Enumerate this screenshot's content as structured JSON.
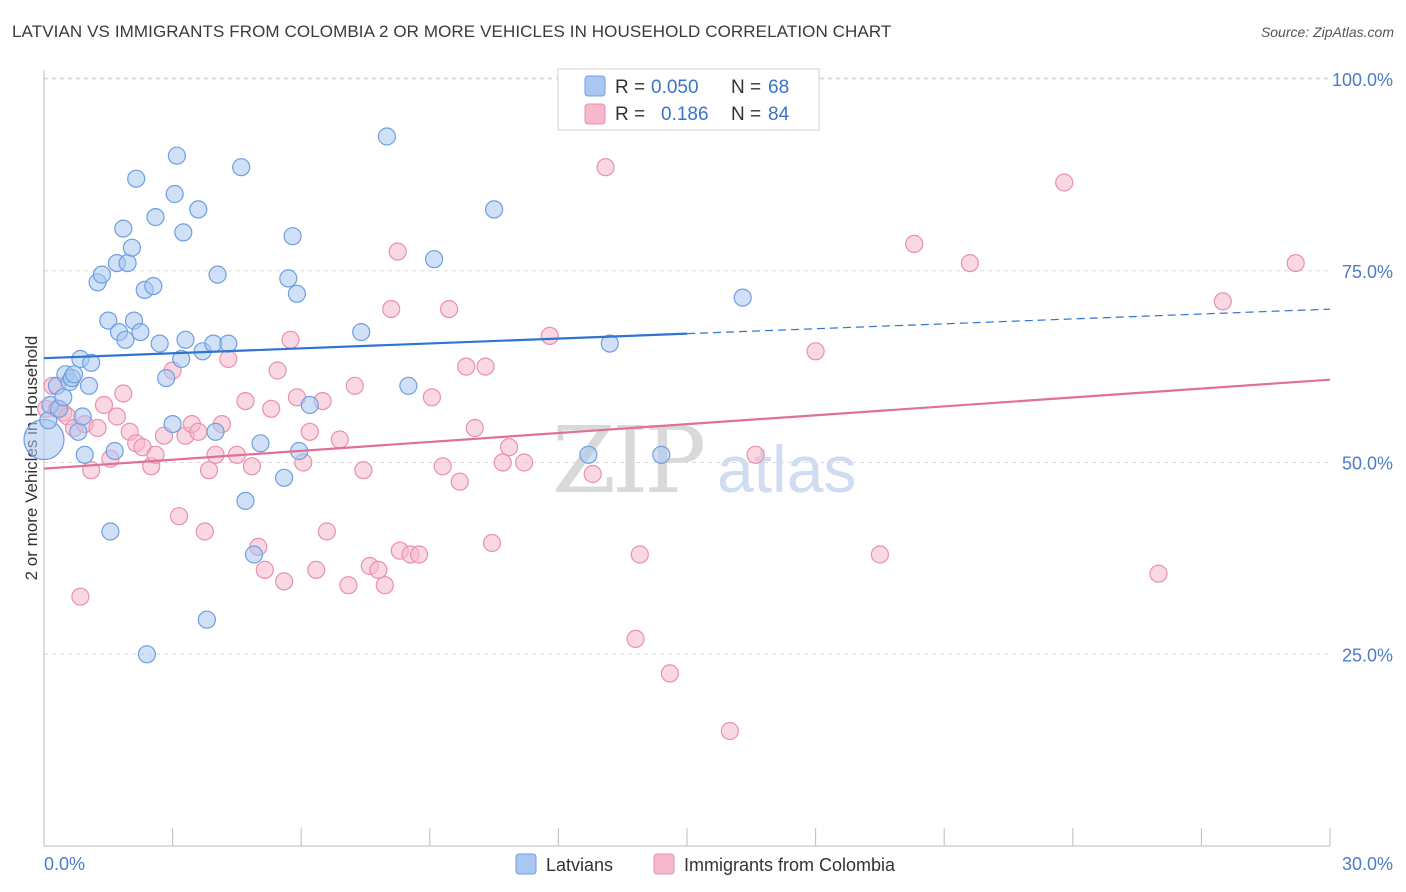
{
  "title": "LATVIAN VS IMMIGRANTS FROM COLOMBIA 2 OR MORE VEHICLES IN HOUSEHOLD CORRELATION CHART",
  "source": "Source: ZipAtlas.com",
  "watermark": {
    "zip": "ZIP",
    "atlas": "atlas"
  },
  "legend": {
    "rows": [
      {
        "r_label": "R =",
        "r_value": "0.050",
        "n_label": "N =",
        "n_value": "68"
      },
      {
        "r_label": "R =",
        "r_value": "0.186",
        "n_label": "N =",
        "n_value": "84"
      }
    ]
  },
  "colors": {
    "latvians_fill": "#a9c7f0",
    "latvians_stroke": "#6e9fe0",
    "latvians_line": "#2f74cf",
    "colombia_fill": "#f6b8cc",
    "colombia_stroke": "#ea8fae",
    "colombia_line": "#e0709a"
  },
  "chart_data": {
    "type": "scatter",
    "xlabel": "",
    "ylabel": "2 or more Vehicles in Household",
    "xlim": [
      0,
      30
    ],
    "ylim": [
      0,
      105
    ],
    "x_tick_labels": [
      {
        "value": 0,
        "label": "0.0%"
      },
      {
        "value": 30,
        "label": "30.0%"
      }
    ],
    "y_tick_labels": [
      {
        "value": 25,
        "label": "25.0%"
      },
      {
        "value": 50,
        "label": "50.0%"
      },
      {
        "value": 75,
        "label": "75.0%"
      },
      {
        "value": 100,
        "label": "100.0%"
      }
    ],
    "grid": true,
    "legend_position": "top-center",
    "series": [
      {
        "name": "Latvians",
        "trend": {
          "x0": 0,
          "y0": 63.6,
          "x1": 15,
          "y1": 66.8,
          "dashed_to_x": 30,
          "dashed_to_y": 70.0
        },
        "points": [
          [
            0.0,
            53.0
          ],
          [
            0.1,
            55.5
          ],
          [
            0.15,
            57.5
          ],
          [
            0.3,
            60.0
          ],
          [
            0.35,
            57.0
          ],
          [
            0.45,
            58.5
          ],
          [
            0.5,
            61.5
          ],
          [
            0.6,
            60.5
          ],
          [
            0.65,
            61.0
          ],
          [
            0.7,
            61.5
          ],
          [
            0.8,
            54.0
          ],
          [
            0.85,
            63.5
          ],
          [
            0.9,
            56.0
          ],
          [
            0.95,
            51.0
          ],
          [
            1.05,
            60.0
          ],
          [
            1.1,
            63.0
          ],
          [
            1.25,
            73.5
          ],
          [
            1.35,
            74.5
          ],
          [
            1.5,
            68.5
          ],
          [
            1.55,
            41.0
          ],
          [
            1.65,
            51.5
          ],
          [
            1.7,
            76.0
          ],
          [
            1.75,
            67.0
          ],
          [
            1.85,
            80.5
          ],
          [
            1.9,
            66.0
          ],
          [
            1.95,
            76.0
          ],
          [
            2.05,
            78.0
          ],
          [
            2.1,
            68.5
          ],
          [
            2.15,
            87.0
          ],
          [
            2.25,
            67.0
          ],
          [
            2.35,
            72.5
          ],
          [
            2.4,
            25.0
          ],
          [
            2.55,
            73.0
          ],
          [
            2.6,
            82.0
          ],
          [
            2.7,
            65.5
          ],
          [
            2.85,
            61.0
          ],
          [
            3.0,
            55.0
          ],
          [
            3.05,
            85.0
          ],
          [
            3.1,
            90.0
          ],
          [
            3.2,
            63.5
          ],
          [
            3.25,
            80.0
          ],
          [
            3.3,
            66.0
          ],
          [
            3.6,
            83.0
          ],
          [
            3.7,
            64.5
          ],
          [
            3.8,
            29.5
          ],
          [
            3.95,
            65.5
          ],
          [
            4.0,
            54.0
          ],
          [
            4.05,
            74.5
          ],
          [
            4.3,
            65.5
          ],
          [
            4.6,
            88.5
          ],
          [
            4.7,
            45.0
          ],
          [
            4.9,
            38.0
          ],
          [
            5.05,
            52.5
          ],
          [
            5.6,
            48.0
          ],
          [
            5.7,
            74.0
          ],
          [
            5.8,
            79.5
          ],
          [
            5.9,
            72.0
          ],
          [
            5.95,
            51.5
          ],
          [
            6.2,
            57.5
          ],
          [
            7.4,
            67.0
          ],
          [
            8.0,
            92.5
          ],
          [
            8.5,
            60.0
          ],
          [
            9.1,
            76.5
          ],
          [
            10.5,
            83.0
          ],
          [
            12.7,
            51.0
          ],
          [
            13.2,
            65.5
          ],
          [
            14.4,
            51.0
          ],
          [
            16.3,
            71.5
          ]
        ]
      },
      {
        "name": "Immigrants from Colombia",
        "trend": {
          "x0": 0,
          "y0": 49.2,
          "x1": 30,
          "y1": 60.8
        },
        "points": [
          [
            0.05,
            57.0
          ],
          [
            0.2,
            60.0
          ],
          [
            0.3,
            57.0
          ],
          [
            0.45,
            56.5
          ],
          [
            0.55,
            56.0
          ],
          [
            0.7,
            54.5
          ],
          [
            0.85,
            32.5
          ],
          [
            0.95,
            55.0
          ],
          [
            1.1,
            49.0
          ],
          [
            1.25,
            54.5
          ],
          [
            1.4,
            57.5
          ],
          [
            1.55,
            50.5
          ],
          [
            1.7,
            56.0
          ],
          [
            1.85,
            59.0
          ],
          [
            2.0,
            54.0
          ],
          [
            2.15,
            52.5
          ],
          [
            2.3,
            52.0
          ],
          [
            2.5,
            49.5
          ],
          [
            2.6,
            51.0
          ],
          [
            2.8,
            53.5
          ],
          [
            3.0,
            62.0
          ],
          [
            3.15,
            43.0
          ],
          [
            3.3,
            53.5
          ],
          [
            3.45,
            55.0
          ],
          [
            3.6,
            54.0
          ],
          [
            3.75,
            41.0
          ],
          [
            3.85,
            49.0
          ],
          [
            4.0,
            51.0
          ],
          [
            4.15,
            55.0
          ],
          [
            4.3,
            63.5
          ],
          [
            4.5,
            51.0
          ],
          [
            4.7,
            58.0
          ],
          [
            4.85,
            49.5
          ],
          [
            5.0,
            39.0
          ],
          [
            5.15,
            36.0
          ],
          [
            5.3,
            57.0
          ],
          [
            5.45,
            62.0
          ],
          [
            5.6,
            34.5
          ],
          [
            5.75,
            66.0
          ],
          [
            5.9,
            58.5
          ],
          [
            6.05,
            50.0
          ],
          [
            6.2,
            54.0
          ],
          [
            6.35,
            36.0
          ],
          [
            6.5,
            58.0
          ],
          [
            6.6,
            41.0
          ],
          [
            6.9,
            53.0
          ],
          [
            7.1,
            34.0
          ],
          [
            7.25,
            60.0
          ],
          [
            7.45,
            49.0
          ],
          [
            7.6,
            36.5
          ],
          [
            7.8,
            36.0
          ],
          [
            7.95,
            34.0
          ],
          [
            8.1,
            70.0
          ],
          [
            8.25,
            77.5
          ],
          [
            8.3,
            38.5
          ],
          [
            8.55,
            38.0
          ],
          [
            8.75,
            38.0
          ],
          [
            9.05,
            58.5
          ],
          [
            9.3,
            49.5
          ],
          [
            9.45,
            70.0
          ],
          [
            9.7,
            47.5
          ],
          [
            9.85,
            62.5
          ],
          [
            10.05,
            54.5
          ],
          [
            10.3,
            62.5
          ],
          [
            10.45,
            39.5
          ],
          [
            10.7,
            50.0
          ],
          [
            10.85,
            52.0
          ],
          [
            11.2,
            50.0
          ],
          [
            11.8,
            66.5
          ],
          [
            12.8,
            48.5
          ],
          [
            13.1,
            88.5
          ],
          [
            13.8,
            27.0
          ],
          [
            13.9,
            38.0
          ],
          [
            14.6,
            22.5
          ],
          [
            16.0,
            15.0
          ],
          [
            16.6,
            51.0
          ],
          [
            18.0,
            64.5
          ],
          [
            19.5,
            38.0
          ],
          [
            20.3,
            78.5
          ],
          [
            21.6,
            76.0
          ],
          [
            23.8,
            86.5
          ],
          [
            26.0,
            35.5
          ],
          [
            27.5,
            71.0
          ],
          [
            29.2,
            76.0
          ]
        ]
      }
    ]
  }
}
